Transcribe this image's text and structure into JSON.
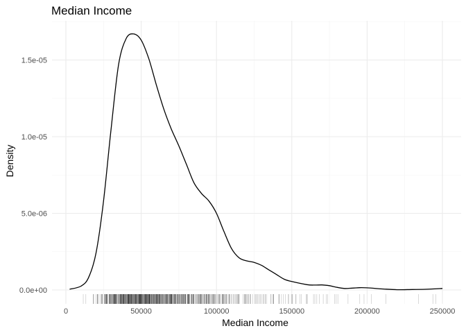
{
  "chart_data": {
    "type": "line",
    "title": "Median Income",
    "xlabel": "Median Income",
    "ylabel": "Density",
    "xlim": [
      0,
      260000
    ],
    "ylim": [
      0,
      1.72e-05
    ],
    "x_ticks": [
      0,
      50000,
      100000,
      150000,
      200000,
      250000
    ],
    "x_tick_labels": [
      "0",
      "50000",
      "100000",
      "150000",
      "200000",
      "250000"
    ],
    "y_ticks": [
      0,
      5e-06,
      1e-05,
      1.5e-05
    ],
    "y_tick_labels": [
      "0.0e+00",
      "5.0e-06",
      "1.0e-05",
      "1.5e-05"
    ],
    "grid": true,
    "legend": "none",
    "series": [
      {
        "x": [
          2500,
          10000,
          15000,
          20000,
          25000,
          30000,
          35000,
          40000,
          45000,
          50000,
          55000,
          60000,
          65000,
          70000,
          75000,
          80000,
          85000,
          90000,
          95000,
          100000,
          105000,
          110000,
          115000,
          120000,
          125000,
          130000,
          135000,
          140000,
          145000,
          150000,
          160000,
          165000,
          170000,
          175000,
          180000,
          185000,
          190000,
          195000,
          200000,
          210000,
          220000,
          230000,
          240000,
          250000
        ],
        "y": [
          5e-08,
          2.5e-07,
          8e-07,
          2.4e-06,
          5.8e-06,
          1.05e-05,
          1.47e-05,
          1.64e-05,
          1.67e-05,
          1.63e-05,
          1.51e-05,
          1.34e-05,
          1.18e-05,
          1.05e-05,
          9.4e-06,
          8.2e-06,
          7e-06,
          6.3e-06,
          5.8e-06,
          5e-06,
          3.8e-06,
          2.7e-06,
          2.1e-06,
          1.9e-06,
          1.8e-06,
          1.6e-06,
          1.3e-06,
          1e-06,
          7e-07,
          5.5e-07,
          3.5e-07,
          3.2e-07,
          3.3e-07,
          2.8e-07,
          1.7e-07,
          1e-07,
          1.2e-07,
          1.5e-07,
          1.4e-07,
          7e-08,
          2e-08,
          3e-08,
          5e-08,
          1e-07
        ]
      }
    ],
    "rug_density": {
      "bins_start": [
        10000,
        15000,
        20000,
        25000,
        30000,
        35000,
        40000,
        45000,
        50000,
        55000,
        60000,
        65000,
        70000,
        75000,
        80000,
        85000,
        90000,
        95000,
        100000,
        105000,
        110000,
        115000,
        120000,
        125000,
        130000,
        135000,
        140000,
        145000,
        150000,
        155000,
        160000,
        165000,
        170000,
        175000,
        180000,
        185000,
        190000,
        195000,
        200000,
        205000,
        210000,
        215000,
        220000,
        225000,
        230000,
        235000,
        240000,
        245000
      ],
      "counts": [
        2,
        4,
        12,
        30,
        45,
        55,
        60,
        60,
        58,
        52,
        48,
        44,
        40,
        36,
        32,
        28,
        24,
        20,
        17,
        14,
        11,
        9,
        8,
        7,
        6,
        6,
        5,
        4,
        4,
        3,
        3,
        3,
        3,
        2,
        1,
        1,
        0,
        2,
        1,
        0,
        1,
        0,
        0,
        0,
        1,
        0,
        1,
        1
      ]
    }
  }
}
